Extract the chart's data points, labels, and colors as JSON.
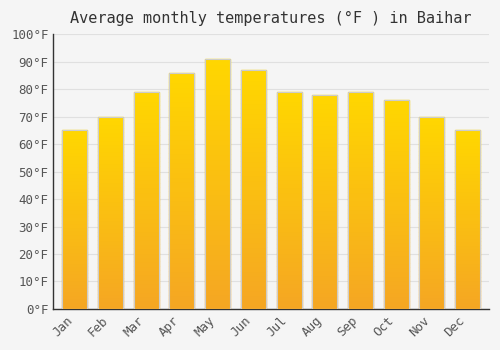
{
  "title": "Average monthly temperatures (°F ) in Baihar",
  "months": [
    "Jan",
    "Feb",
    "Mar",
    "Apr",
    "May",
    "Jun",
    "Jul",
    "Aug",
    "Sep",
    "Oct",
    "Nov",
    "Dec"
  ],
  "values": [
    65,
    70,
    79,
    86,
    91,
    87,
    79,
    78,
    79,
    76,
    70,
    65
  ],
  "bar_color_bottom": "#F5A623",
  "bar_color_top": "#FFD700",
  "bar_edge_color": "#CCCCCC",
  "background_color": "#F5F5F5",
  "grid_color": "#E0E0E0",
  "ylim": [
    0,
    100
  ],
  "ytick_step": 10,
  "title_fontsize": 11,
  "tick_fontsize": 9,
  "font_family": "monospace"
}
